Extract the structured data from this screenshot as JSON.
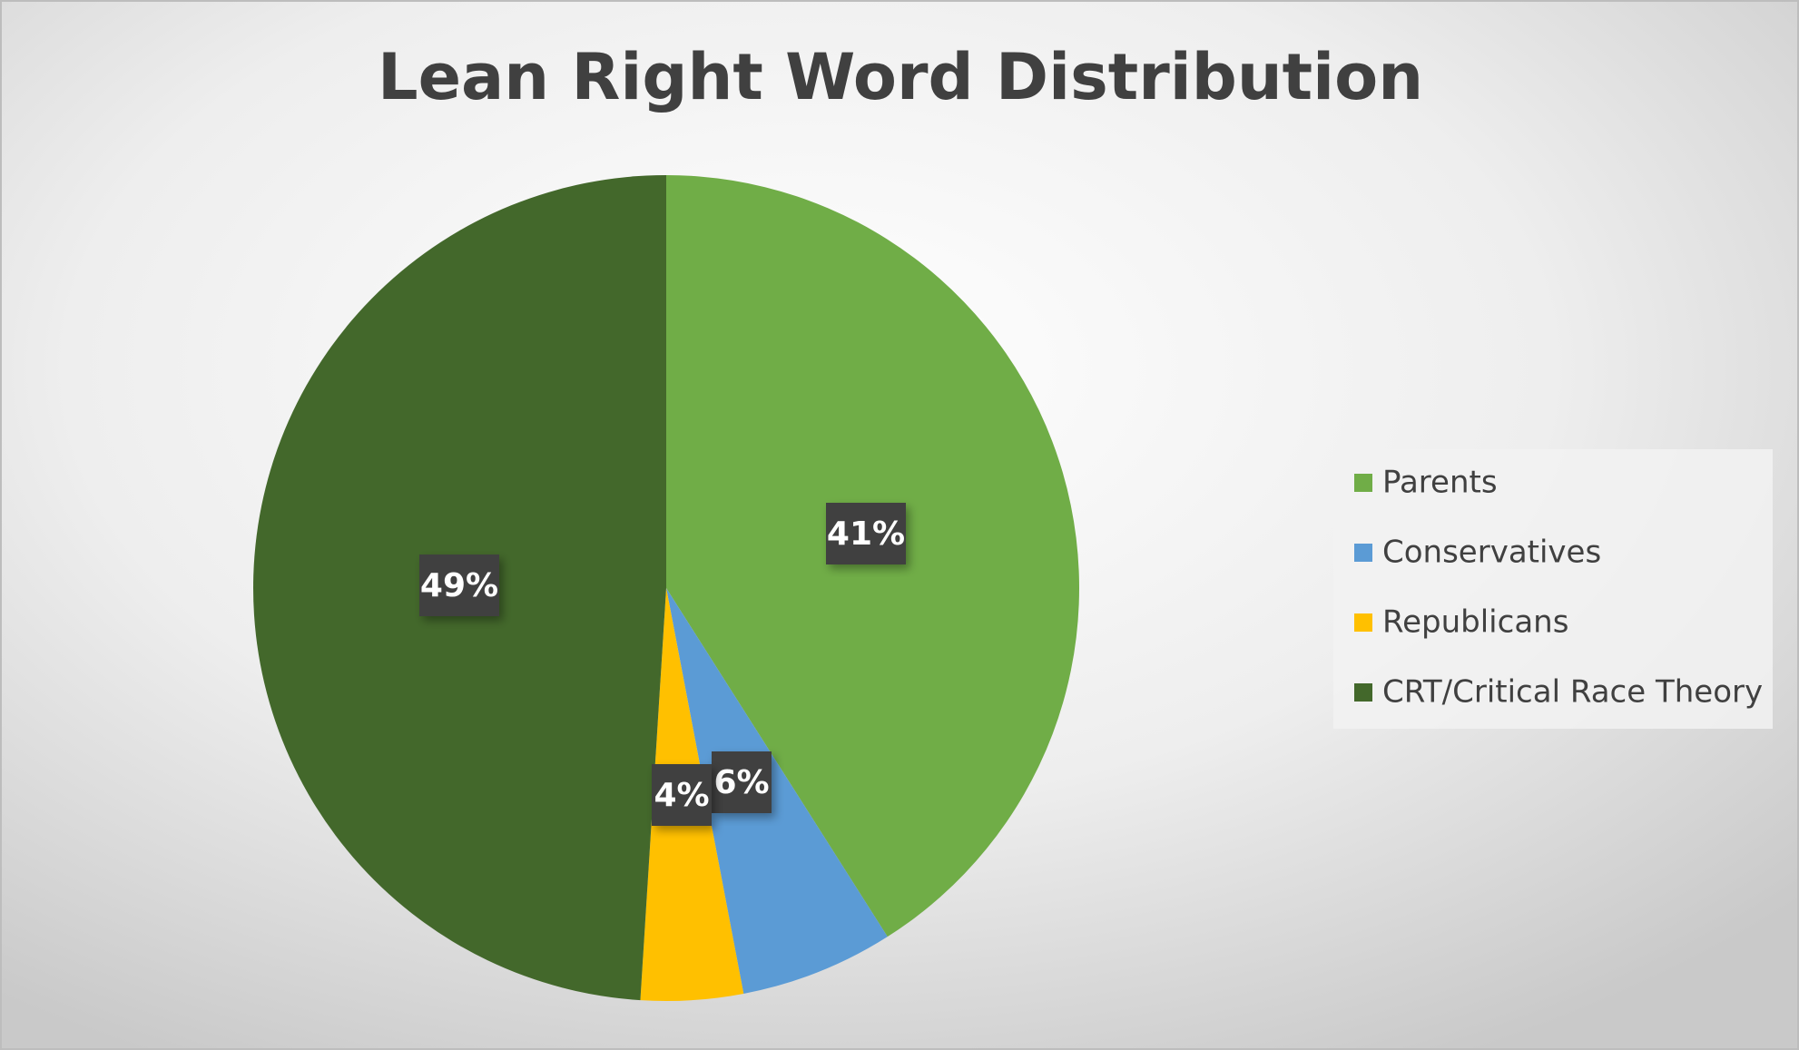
{
  "chart_data": {
    "type": "pie",
    "title": "Lean Right Word Distribution",
    "categories": [
      "Parents",
      "Conservatives",
      "Republicans",
      "CRT/Critical Race Theory"
    ],
    "values": [
      41,
      6,
      4,
      49
    ],
    "value_labels": [
      "41%",
      "6%",
      "4%",
      "49%"
    ],
    "colors": [
      "#70ad47",
      "#5b9bd5",
      "#ffc000",
      "#43682b"
    ],
    "legend": "right"
  }
}
